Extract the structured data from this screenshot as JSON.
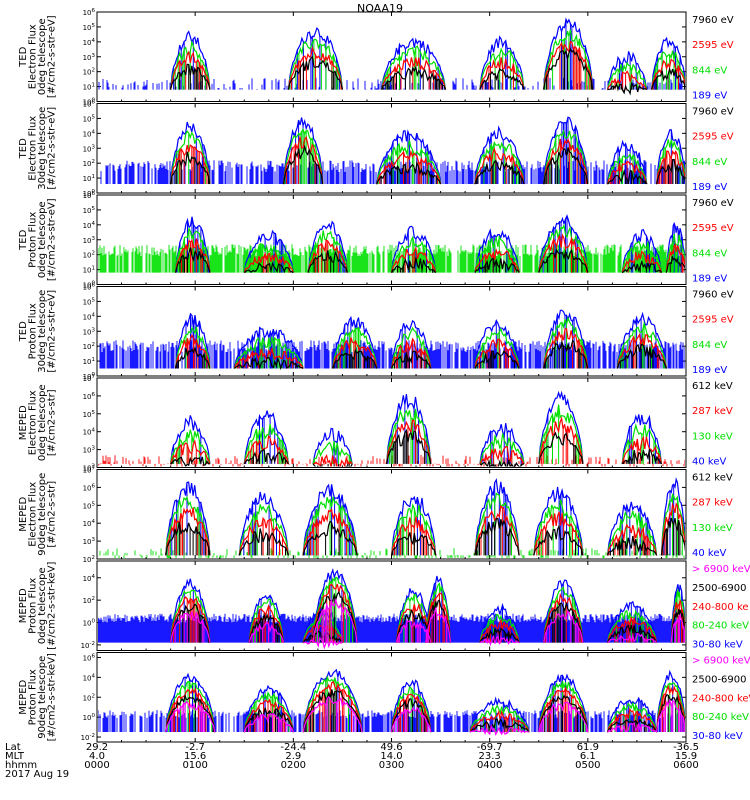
{
  "title": "NOAA19",
  "colors": {
    "blue": "#0000ff",
    "red": "#ff0000",
    "green": "#00e000",
    "black": "#000000",
    "magenta": "#ff00ff"
  },
  "chart_data": [
    {
      "type": "line",
      "ylabel": [
        "TED",
        "Electron Flux",
        "0deg telescope",
        "[#/cm2-s-str-eV]"
      ],
      "yticks": [
        "10^0",
        "10^1",
        "10^2",
        "10^3",
        "10^4",
        "10^5",
        "10^6"
      ],
      "legend": [
        {
          "label": "7960 eV",
          "color": "#000000"
        },
        {
          "label": "2595 eV",
          "color": "#ff0000"
        },
        {
          "label": "844 eV",
          "color": "#00e000"
        },
        {
          "label": "189 eV",
          "color": "#0000ff"
        }
      ],
      "y_log_range": [
        0,
        6
      ],
      "x_hours": [
        0,
        6
      ],
      "passes": [
        {
          "s": 0.75,
          "e": 1.15,
          "pk": 4.3
        },
        {
          "s": 1.95,
          "e": 2.5,
          "pk": 4.7
        },
        {
          "s": 2.9,
          "e": 3.55,
          "pk": 4.0
        },
        {
          "s": 3.9,
          "e": 4.35,
          "pk": 4.0
        },
        {
          "s": 4.55,
          "e": 5.05,
          "pk": 5.2
        },
        {
          "s": 5.2,
          "e": 5.6,
          "pk": 3.0
        },
        {
          "s": 5.65,
          "e": 6.0,
          "pk": 4.0
        }
      ],
      "floor": 0.8,
      "bgcolor": "#0000ff",
      "bglevel": 1.2,
      "bgdensity": 0.35
    },
    {
      "type": "line",
      "ylabel": [
        "TED",
        "Electron Flux",
        "30deg telescope",
        "[#/cm2-s-str-eV]"
      ],
      "yticks": [
        "10^0",
        "10^1",
        "10^2",
        "10^3",
        "10^4",
        "10^5",
        "10^6"
      ],
      "legend": [
        {
          "label": "7960 eV",
          "color": "#000000"
        },
        {
          "label": "2595 eV",
          "color": "#ff0000"
        },
        {
          "label": "844 eV",
          "color": "#00e000"
        },
        {
          "label": "189 eV",
          "color": "#0000ff"
        }
      ],
      "y_log_range": [
        0,
        6
      ],
      "x_hours": [
        0,
        6
      ],
      "passes": [
        {
          "s": 0.75,
          "e": 1.15,
          "pk": 4.5
        },
        {
          "s": 1.9,
          "e": 2.3,
          "pk": 4.8
        },
        {
          "s": 2.85,
          "e": 3.5,
          "pk": 3.8
        },
        {
          "s": 3.85,
          "e": 4.35,
          "pk": 4.0
        },
        {
          "s": 4.55,
          "e": 5.0,
          "pk": 4.8
        },
        {
          "s": 5.2,
          "e": 5.6,
          "pk": 3.2
        },
        {
          "s": 5.7,
          "e": 6.0,
          "pk": 4.0
        }
      ],
      "floor": 0.6,
      "bgcolor": "#0000ff",
      "bglevel": 1.8,
      "bgdensity": 0.6
    },
    {
      "type": "line",
      "ylabel": [
        "TED",
        "Proton Flux",
        "0deg telescope",
        "[#/cm2-s-str-eV]"
      ],
      "yticks": [
        "10^0",
        "10^1",
        "10^2",
        "10^3",
        "10^4",
        "10^5",
        "10^6"
      ],
      "legend": [
        {
          "label": "7960 eV",
          "color": "#000000"
        },
        {
          "label": "2595 eV",
          "color": "#ff0000"
        },
        {
          "label": "844 eV",
          "color": "#00e000"
        },
        {
          "label": "189 eV",
          "color": "#0000ff"
        }
      ],
      "y_log_range": [
        0,
        6
      ],
      "x_hours": [
        0,
        6
      ],
      "passes": [
        {
          "s": 0.8,
          "e": 1.15,
          "pk": 4.2
        },
        {
          "s": 1.5,
          "e": 2.0,
          "pk": 3.2
        },
        {
          "s": 2.15,
          "e": 2.55,
          "pk": 4.0
        },
        {
          "s": 3.0,
          "e": 3.45,
          "pk": 3.5
        },
        {
          "s": 3.85,
          "e": 4.3,
          "pk": 3.5
        },
        {
          "s": 4.5,
          "e": 5.0,
          "pk": 4.3
        },
        {
          "s": 5.35,
          "e": 5.75,
          "pk": 3.3
        },
        {
          "s": 5.8,
          "e": 6.0,
          "pk": 3.8
        }
      ],
      "floor": 0.8,
      "bgcolor": "#00e000",
      "bglevel": 2.3,
      "bgdensity": 0.8
    },
    {
      "type": "line",
      "ylabel": [
        "TED",
        "Proton Flux",
        "30deg telescope",
        "[#/cm2-s-str-eV]"
      ],
      "yticks": [
        "10^0",
        "10^1",
        "10^2",
        "10^3",
        "10^4",
        "10^5",
        "10^6"
      ],
      "legend": [
        {
          "label": "7960 eV",
          "color": "#000000"
        },
        {
          "label": "2595 eV",
          "color": "#ff0000"
        },
        {
          "label": "844 eV",
          "color": "#00e000"
        },
        {
          "label": "189 eV",
          "color": "#0000ff"
        }
      ],
      "y_log_range": [
        0,
        6
      ],
      "x_hours": [
        0,
        6
      ],
      "passes": [
        {
          "s": 0.8,
          "e": 1.15,
          "pk": 3.8
        },
        {
          "s": 1.4,
          "e": 2.1,
          "pk": 3.0
        },
        {
          "s": 2.4,
          "e": 2.85,
          "pk": 3.6
        },
        {
          "s": 3.0,
          "e": 3.4,
          "pk": 3.5
        },
        {
          "s": 3.85,
          "e": 4.3,
          "pk": 3.5
        },
        {
          "s": 4.55,
          "e": 5.0,
          "pk": 4.2
        },
        {
          "s": 5.3,
          "e": 5.8,
          "pk": 3.8
        }
      ],
      "floor": 0.5,
      "bgcolor": "#0000ff",
      "bglevel": 2.0,
      "bgdensity": 0.7
    },
    {
      "type": "line",
      "ylabel": [
        "MEPED",
        "Electron Flux",
        "0deg telescope",
        "[#/cm2-s-str]"
      ],
      "yticks": [
        "10^2",
        "10^3",
        "10^4",
        "10^5",
        "10^6",
        "10^7"
      ],
      "legend": [
        {
          "label": "612 keV",
          "color": "#000000"
        },
        {
          "label": "287 keV",
          "color": "#ff0000"
        },
        {
          "label": "130 keV",
          "color": "#00e000"
        },
        {
          "label": "40 keV",
          "color": "#0000ff"
        }
      ],
      "y_log_range": [
        2,
        7
      ],
      "x_hours": [
        0,
        6
      ],
      "passes": [
        {
          "s": 0.75,
          "e": 1.15,
          "pk": 4.5
        },
        {
          "s": 1.5,
          "e": 1.95,
          "pk": 4.8
        },
        {
          "s": 2.2,
          "e": 2.6,
          "pk": 3.8
        },
        {
          "s": 2.95,
          "e": 3.4,
          "pk": 5.8
        },
        {
          "s": 3.9,
          "e": 4.35,
          "pk": 4.2
        },
        {
          "s": 4.5,
          "e": 4.95,
          "pk": 5.8
        },
        {
          "s": 5.35,
          "e": 5.75,
          "pk": 4.8
        }
      ],
      "floor": 2.2,
      "bgcolor": "#ff0000",
      "bglevel": 2.3,
      "bgdensity": 0.4
    },
    {
      "type": "line",
      "ylabel": [
        "MEPED",
        "Electron Flux",
        "90deg telescope",
        "[#/cm2-s-str]"
      ],
      "yticks": [
        "10^2",
        "10^3",
        "10^4",
        "10^5",
        "10^6",
        "10^7"
      ],
      "legend": [
        {
          "label": "612 keV",
          "color": "#000000"
        },
        {
          "label": "287 keV",
          "color": "#ff0000"
        },
        {
          "label": "130 keV",
          "color": "#00e000"
        },
        {
          "label": "40 keV",
          "color": "#0000ff"
        }
      ],
      "y_log_range": [
        2,
        7
      ],
      "x_hours": [
        0,
        6
      ],
      "passes": [
        {
          "s": 0.7,
          "e": 1.15,
          "pk": 6.0
        },
        {
          "s": 1.45,
          "e": 1.95,
          "pk": 5.4
        },
        {
          "s": 2.1,
          "e": 2.65,
          "pk": 5.8
        },
        {
          "s": 3.0,
          "e": 3.45,
          "pk": 5.4
        },
        {
          "s": 3.85,
          "e": 4.3,
          "pk": 6.0
        },
        {
          "s": 4.45,
          "e": 4.95,
          "pk": 5.6
        },
        {
          "s": 5.2,
          "e": 5.7,
          "pk": 5.0
        },
        {
          "s": 5.75,
          "e": 6.0,
          "pk": 6.2
        }
      ],
      "floor": 2.2,
      "bgcolor": "#00e000",
      "bglevel": 2.2,
      "bgdensity": 0.4
    },
    {
      "type": "line",
      "ylabel": [
        "MEPED",
        "Proton Flux",
        "0deg telescope",
        "[#/cm2-s-str-keV]"
      ],
      "yticks": [
        "10^-2",
        "10^0",
        "10^2",
        "10^4"
      ],
      "legend": [
        {
          "label": "> 6900 keV",
          "color": "#ff00ff"
        },
        {
          "label": "2500-6900",
          "color": "#000000"
        },
        {
          "label": "240-800 ke",
          "color": "#ff0000"
        },
        {
          "label": "80-240 keV",
          "color": "#00e000"
        },
        {
          "label": "30-80 keV",
          "color": "#0000ff"
        }
      ],
      "y_log_range": [
        -2.5,
        5.5
      ],
      "x_hours": [
        0,
        6
      ],
      "passes": [
        {
          "s": 0.75,
          "e": 1.15,
          "pk": 3.5
        },
        {
          "s": 1.55,
          "e": 1.9,
          "pk": 2.5
        },
        {
          "s": 2.1,
          "e": 2.5,
          "pk": 1.0
        },
        {
          "s": 2.2,
          "e": 2.65,
          "pk": 4.5
        },
        {
          "s": 3.05,
          "e": 3.4,
          "pk": 2.8
        },
        {
          "s": 3.35,
          "e": 3.6,
          "pk": 3.8
        },
        {
          "s": 3.9,
          "e": 4.3,
          "pk": 1.2
        },
        {
          "s": 4.55,
          "e": 4.95,
          "pk": 3.5
        },
        {
          "s": 5.2,
          "e": 5.7,
          "pk": 1.5
        },
        {
          "s": 5.85,
          "e": 6.0,
          "pk": 3.2
        }
      ],
      "floor": -1.8,
      "bgcolor": "#0000ff",
      "bglevel": 0.4,
      "bgdensity": 1.0
    },
    {
      "type": "line",
      "ylabel": [
        "MEPED",
        "Proton Flux",
        "90deg telescope",
        "[#/cm2-s-str-keV]"
      ],
      "yticks": [
        "10^-2",
        "10^0",
        "10^2",
        "10^4",
        "10^6"
      ],
      "legend": [
        {
          "label": "> 6900 keV",
          "color": "#ff00ff"
        },
        {
          "label": "2500-6900",
          "color": "#000000"
        },
        {
          "label": "240-800 keV",
          "color": "#ff0000"
        },
        {
          "label": "80-240 keV",
          "color": "#00e000"
        },
        {
          "label": "30-80 keV",
          "color": "#0000ff"
        }
      ],
      "y_log_range": [
        -2.5,
        6.5
      ],
      "x_hours": [
        0,
        6
      ],
      "passes": [
        {
          "s": 0.7,
          "e": 1.2,
          "pk": 4.0
        },
        {
          "s": 1.5,
          "e": 2.0,
          "pk": 2.8
        },
        {
          "s": 2.1,
          "e": 2.7,
          "pk": 4.5
        },
        {
          "s": 3.0,
          "e": 3.4,
          "pk": 3.5
        },
        {
          "s": 3.8,
          "e": 4.4,
          "pk": 1.5
        },
        {
          "s": 4.5,
          "e": 5.0,
          "pk": 4.0
        },
        {
          "s": 5.2,
          "e": 5.7,
          "pk": 1.8
        },
        {
          "s": 5.7,
          "e": 6.0,
          "pk": 4.2
        }
      ],
      "floor": -1.5,
      "bgcolor": "#0000ff",
      "bglevel": 0.3,
      "bgdensity": 0.6
    }
  ],
  "xaxis": {
    "row_labels": [
      "Lat",
      "MLT",
      "hhmm",
      "2017 Aug 19"
    ],
    "ticks": [
      {
        "lat": "29.2",
        "mlt": "4.0",
        "hhmm": "0000"
      },
      {
        "lat": "-2.7",
        "mlt": "15.6",
        "hhmm": "0100"
      },
      {
        "lat": "-24.4",
        "mlt": "2.9",
        "hhmm": "0200"
      },
      {
        "lat": "49.6",
        "mlt": "14.0",
        "hhmm": "0300"
      },
      {
        "lat": "-69.7",
        "mlt": "23.3",
        "hhmm": "0400"
      },
      {
        "lat": "61.9",
        "mlt": "6.1",
        "hhmm": "0500"
      },
      {
        "lat": "-36.5",
        "mlt": "15.9",
        "hhmm": "0600"
      }
    ]
  }
}
